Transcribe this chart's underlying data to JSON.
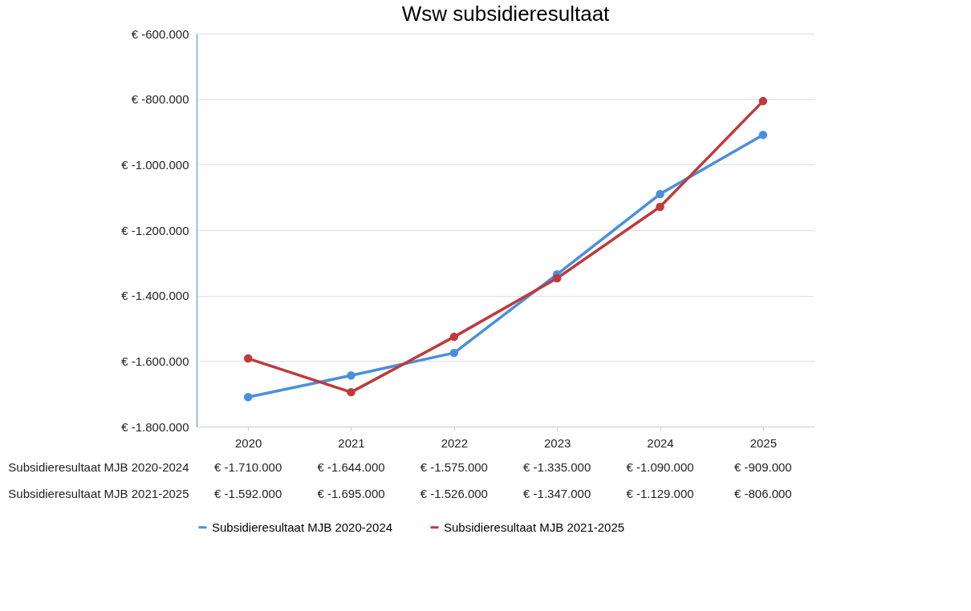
{
  "chart_data": {
    "type": "line",
    "title": "Wsw subsidieresultaat",
    "categories": [
      "2020",
      "2021",
      "2022",
      "2023",
      "2024",
      "2025"
    ],
    "series": [
      {
        "name": "Subsidieresultaat MJB 2020-2024",
        "color": "#4a8fdc",
        "values": [
          -1710000,
          -1644000,
          -1575000,
          -1335000,
          -1090000,
          -909000
        ],
        "value_labels": [
          "€ -1.710.000",
          "€ -1.644.000",
          "€ -1.575.000",
          "€ -1.335.000",
          "€ -1.090.000",
          "€ -909.000"
        ]
      },
      {
        "name": "Subsidieresultaat  MJB 2021-2025",
        "color": "#c0393b",
        "values": [
          -1592000,
          -1695000,
          -1526000,
          -1347000,
          -1129000,
          -806000
        ],
        "value_labels": [
          "€ -1.592.000",
          "€ -1.695.000",
          "€ -1.526.000",
          "€ -1.347.000",
          "€ -1.129.000",
          "€ -806.000"
        ]
      }
    ],
    "ylim": [
      -1800000,
      -600000
    ],
    "yticks": [
      {
        "value": -1800000,
        "label": "€ -1.800.000"
      },
      {
        "value": -1600000,
        "label": "€ -1.600.000"
      },
      {
        "value": -1400000,
        "label": "€ -1.400.000"
      },
      {
        "value": -1200000,
        "label": "€ -1.200.000"
      },
      {
        "value": -1000000,
        "label": "€ -1.000.000"
      },
      {
        "value": -800000,
        "label": "€ -800.000"
      },
      {
        "value": -600000,
        "label": "€ -600.000"
      }
    ],
    "grid": "y",
    "legend": "bottom",
    "marker": "circle",
    "line_style": "solid"
  }
}
